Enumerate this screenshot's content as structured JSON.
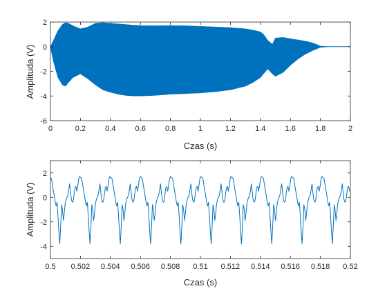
{
  "chart_data": [
    {
      "type": "line",
      "title": "",
      "xlabel": "Czas (s)",
      "ylabel": "Amplituda (V)",
      "xlim": [
        0,
        2
      ],
      "ylim": [
        -6,
        2
      ],
      "xticks": [
        "0",
        "0.2",
        "0.4",
        "0.6",
        "0.8",
        "1",
        "1.2",
        "1.4",
        "1.6",
        "1.8",
        "2"
      ],
      "yticks": [
        "-6",
        "-4",
        "-2",
        "0",
        "2"
      ],
      "grid": false,
      "legend": "none",
      "color": "#0072BD",
      "series": [
        {
          "style": "dense-oscillation-envelope",
          "x": [
            0,
            0.02,
            0.05,
            0.08,
            0.1,
            0.12,
            0.15,
            0.2,
            0.25,
            0.3,
            0.35,
            0.4,
            0.45,
            0.5,
            0.55,
            0.6,
            0.7,
            0.8,
            0.9,
            1.0,
            1.1,
            1.2,
            1.3,
            1.35,
            1.4,
            1.42,
            1.45,
            1.48,
            1.5,
            1.55,
            1.6,
            1.65,
            1.7,
            1.75,
            1.78,
            1.8,
            1.85,
            2.0
          ],
          "upper": [
            0,
            0.5,
            1.3,
            1.8,
            1.95,
            1.9,
            1.7,
            1.45,
            1.6,
            1.9,
            1.95,
            1.9,
            1.85,
            1.8,
            1.75,
            1.72,
            1.7,
            1.72,
            1.7,
            1.65,
            1.6,
            1.55,
            1.45,
            1.35,
            1.2,
            1.0,
            0.5,
            0.2,
            0.7,
            0.75,
            0.65,
            0.55,
            0.45,
            0.3,
            0.15,
            0.05,
            0,
            0
          ],
          "lower": [
            0,
            -1.2,
            -2.5,
            -3.1,
            -3.2,
            -2.9,
            -2.5,
            -2.2,
            -2.6,
            -3.1,
            -3.5,
            -3.7,
            -3.85,
            -3.95,
            -4.0,
            -4.0,
            -3.95,
            -3.85,
            -3.8,
            -3.75,
            -3.65,
            -3.5,
            -3.2,
            -2.9,
            -2.5,
            -2.2,
            -1.8,
            -2.2,
            -2.4,
            -2.1,
            -1.5,
            -1.0,
            -0.6,
            -0.3,
            -0.15,
            -0.05,
            0,
            0
          ]
        }
      ]
    },
    {
      "type": "line",
      "title": "",
      "xlabel": "Czas (s)",
      "ylabel": "Amplituda (V)",
      "xlim": [
        0.5,
        0.52
      ],
      "ylim": [
        -5,
        3
      ],
      "xticks": [
        "0.5",
        "0.502",
        "0.504",
        "0.506",
        "0.508",
        "0.51",
        "0.512",
        "0.514",
        "0.516",
        "0.518",
        "0.52"
      ],
      "yticks": [
        "-4",
        "-2",
        "0",
        "2"
      ],
      "grid": false,
      "legend": "none",
      "color": "#0072BD",
      "series": [
        {
          "style": "periodic-waveform",
          "period": 0.00202,
          "phase_start": 0.50002,
          "pattern_t": [
            0,
            5e-05,
            0.0001,
            0.00018,
            0.00025,
            0.0003,
            0.00036,
            0.00042,
            0.00048,
            0.00054,
            0.0006,
            0.00066,
            0.00072,
            0.00078,
            0.00084,
            0.0009,
            0.00096,
            0.001,
            0.00104,
            0.00108,
            0.00112,
            0.00116,
            0.0012,
            0.00126,
            0.00132,
            0.00138,
            0.00144,
            0.0015,
            0.00156,
            0.00162,
            0.00168,
            0.00174,
            0.0018,
            0.00186,
            0.00192,
            0.00202
          ],
          "pattern_v": [
            1.6,
            1.5,
            1.1,
            0.5,
            0.0,
            -0.4,
            -0.7,
            -0.4,
            -1.5,
            -2.8,
            -3.8,
            -2.4,
            -0.6,
            -1.0,
            -1.9,
            -1.3,
            -0.5,
            -0.3,
            -0.1,
            0.0,
            0.1,
            0.3,
            0.6,
            1.1,
            0.4,
            -0.2,
            -0.4,
            -0.3,
            0.3,
            0.8,
            0.9,
            0.5,
            0.9,
            1.5,
            1.7,
            1.6
          ]
        }
      ]
    }
  ]
}
